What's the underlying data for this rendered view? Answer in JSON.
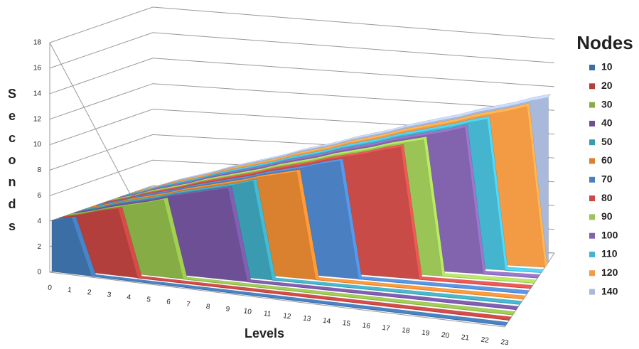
{
  "chart_data": {
    "type": "area3d",
    "x_label": "Levels",
    "y_label": "Seconds",
    "legend_title": "Nodes",
    "x": [
      0,
      1,
      2,
      3,
      4,
      5,
      6,
      7,
      8,
      9,
      10,
      11,
      12,
      13,
      14,
      15,
      16,
      17,
      18,
      19,
      20,
      21,
      22,
      23
    ],
    "xlim": [
      0,
      23
    ],
    "ylim": [
      0,
      18
    ],
    "yticks": [
      0,
      2,
      4,
      6,
      8,
      10,
      12,
      14,
      16,
      18
    ],
    "grid": true,
    "series": [
      {
        "name": "10",
        "color": "#3c6ea6",
        "values": [
          4.0,
          4.4,
          0,
          0,
          0,
          0,
          0,
          0,
          0,
          0,
          0,
          0,
          0,
          0,
          0,
          0,
          0,
          0,
          0,
          0,
          0,
          0,
          0,
          0
        ]
      },
      {
        "name": "20",
        "color": "#b33f3c",
        "values": [
          4.0,
          4.4,
          4.9,
          5.3,
          0,
          0,
          0,
          0,
          0,
          0,
          0,
          0,
          0,
          0,
          0,
          0,
          0,
          0,
          0,
          0,
          0,
          0,
          0,
          0
        ]
      },
      {
        "name": "30",
        "color": "#86ad45",
        "values": [
          4.0,
          4.4,
          4.9,
          5.3,
          5.7,
          6.2,
          0,
          0,
          0,
          0,
          0,
          0,
          0,
          0,
          0,
          0,
          0,
          0,
          0,
          0,
          0,
          0,
          0,
          0
        ]
      },
      {
        "name": "40",
        "color": "#6d4f96",
        "values": [
          4.0,
          4.4,
          4.9,
          5.3,
          5.7,
          6.2,
          6.6,
          7.0,
          7.4,
          0,
          0,
          0,
          0,
          0,
          0,
          0,
          0,
          0,
          0,
          0,
          0,
          0,
          0,
          0
        ]
      },
      {
        "name": "50",
        "color": "#3a9bb0",
        "values": [
          4.0,
          4.4,
          4.9,
          5.3,
          5.7,
          6.2,
          6.6,
          7.0,
          7.4,
          7.9,
          0,
          0,
          0,
          0,
          0,
          0,
          0,
          0,
          0,
          0,
          0,
          0,
          0,
          0
        ]
      },
      {
        "name": "60",
        "color": "#d9812f",
        "values": [
          4.0,
          4.4,
          4.9,
          5.3,
          5.7,
          6.2,
          6.6,
          7.0,
          7.4,
          7.9,
          8.3,
          8.7,
          0,
          0,
          0,
          0,
          0,
          0,
          0,
          0,
          0,
          0,
          0,
          0
        ]
      },
      {
        "name": "70",
        "color": "#4a7fc1",
        "values": [
          4.0,
          4.4,
          4.9,
          5.3,
          5.7,
          6.2,
          6.6,
          7.0,
          7.4,
          7.9,
          8.3,
          8.7,
          9.2,
          9.6,
          0,
          0,
          0,
          0,
          0,
          0,
          0,
          0,
          0,
          0
        ]
      },
      {
        "name": "80",
        "color": "#c84b48",
        "values": [
          4.0,
          4.4,
          4.9,
          5.3,
          5.7,
          6.2,
          6.6,
          7.0,
          7.4,
          7.9,
          8.3,
          8.7,
          9.2,
          9.6,
          10.0,
          10.5,
          10.9,
          0,
          0,
          0,
          0,
          0,
          0,
          0
        ]
      },
      {
        "name": "90",
        "color": "#9bc456",
        "values": [
          4.0,
          4.4,
          4.9,
          5.3,
          5.7,
          6.2,
          6.6,
          7.0,
          7.4,
          7.9,
          8.3,
          8.7,
          9.2,
          9.6,
          10.0,
          10.5,
          10.9,
          11.3,
          0,
          0,
          0,
          0,
          0,
          0
        ]
      },
      {
        "name": "100",
        "color": "#8263ad",
        "values": [
          4.0,
          4.4,
          4.9,
          5.3,
          5.7,
          6.2,
          6.6,
          7.0,
          7.4,
          7.9,
          8.3,
          8.7,
          9.2,
          9.6,
          10.0,
          10.5,
          10.9,
          11.3,
          11.7,
          12.2,
          0,
          0,
          0,
          0
        ]
      },
      {
        "name": "110",
        "color": "#45b4cf",
        "values": [
          4.0,
          4.4,
          4.9,
          5.3,
          5.7,
          6.2,
          6.6,
          7.0,
          7.4,
          7.9,
          8.3,
          8.7,
          9.2,
          9.6,
          10.0,
          10.5,
          10.9,
          11.3,
          11.7,
          12.2,
          12.6,
          0,
          0,
          0
        ]
      },
      {
        "name": "120",
        "color": "#f39a45",
        "values": [
          4.0,
          4.4,
          4.9,
          5.3,
          5.7,
          6.2,
          6.6,
          7.0,
          7.4,
          7.9,
          8.3,
          8.7,
          9.2,
          9.6,
          10.0,
          10.5,
          10.9,
          11.3,
          11.7,
          12.2,
          12.6,
          13.0,
          13.5,
          0
        ]
      },
      {
        "name": "140",
        "color": "#a9b9dc",
        "values": [
          4.0,
          4.4,
          4.9,
          5.3,
          5.7,
          6.2,
          6.6,
          7.0,
          7.4,
          7.9,
          8.3,
          8.7,
          9.2,
          9.6,
          10.0,
          10.5,
          10.9,
          11.3,
          11.7,
          12.2,
          12.6,
          13.0,
          13.5,
          13.9
        ]
      }
    ]
  }
}
